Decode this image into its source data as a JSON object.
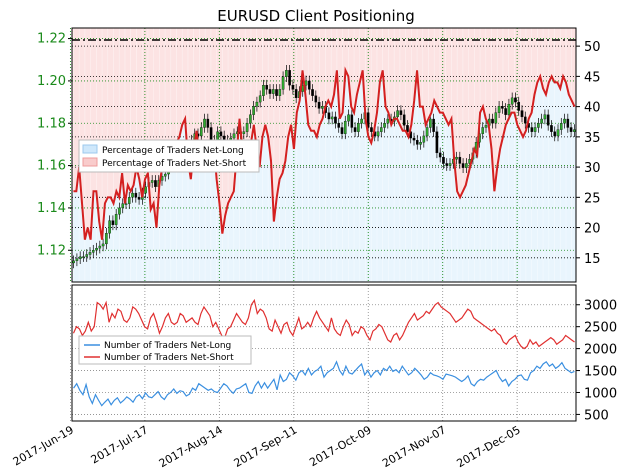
{
  "chart_data": [
    {
      "type": "candlestick+line",
      "title": "EURUSD Client Positioning",
      "left_axis": {
        "ticks": [
          "1.12",
          "1.14",
          "1.16",
          "1.18",
          "1.20",
          "1.22"
        ],
        "ylim": [
          1.105,
          1.225
        ],
        "color": "#1a8a1a"
      },
      "right_axis": {
        "ticks": [
          "15",
          "20",
          "25",
          "30",
          "35",
          "40",
          "45",
          "50"
        ],
        "ylim": [
          11,
          53
        ]
      },
      "x_ticks": [
        "2017-Jun-19",
        "2017-Jul-17",
        "2017-Aug-14",
        "2017-Sep-11",
        "2017-Oct-09",
        "2017-Nov-07",
        "2017-Dec-05"
      ],
      "grid": true,
      "legend": {
        "placement": "left",
        "entries": [
          {
            "label": "Percentage of Traders Net-Long",
            "color": "#cfe8fb"
          },
          {
            "label": "Percentage of Traders Net-Short",
            "color": "#f9cccc"
          }
        ]
      },
      "reference_line": {
        "value": 50,
        "style": "dash-dot",
        "color": "#000000"
      },
      "series": [
        {
          "name": "Percentage of Traders Net-Short",
          "color": "#d42020",
          "values": [
            26,
            26,
            30,
            24,
            18,
            20,
            18,
            26,
            26,
            21,
            18,
            24,
            25,
            25,
            24,
            26,
            25,
            29,
            24,
            27,
            26,
            27,
            30,
            28,
            25,
            28,
            29,
            23,
            24,
            20,
            27,
            30,
            31,
            32,
            33,
            31,
            34,
            35,
            37,
            38,
            31,
            28,
            33,
            36,
            31,
            32,
            33,
            34,
            33,
            34,
            28,
            24,
            19,
            22,
            24,
            25,
            26,
            32,
            38,
            33,
            33,
            32,
            34,
            37,
            33,
            30,
            35,
            37,
            35,
            31,
            21,
            25,
            28,
            29,
            31,
            35,
            37,
            33,
            39,
            41,
            46,
            42,
            37,
            36,
            36,
            35,
            37,
            38,
            40,
            41,
            40,
            42,
            46,
            38,
            39,
            46,
            45,
            40,
            39,
            42,
            44,
            46,
            38,
            35,
            34,
            36,
            39,
            44,
            46,
            40,
            39,
            37,
            38,
            38,
            37,
            36,
            36,
            35,
            37,
            41,
            46,
            40,
            40,
            37,
            38,
            39,
            41,
            40,
            39,
            39,
            38,
            37,
            38,
            31,
            26,
            25,
            26,
            27,
            29,
            31,
            33,
            32,
            39,
            40,
            38,
            37,
            33,
            26,
            30,
            33,
            35,
            37,
            38,
            39,
            39,
            37,
            36,
            35,
            36,
            38,
            39,
            42,
            44,
            45,
            43,
            42,
            44,
            45,
            44,
            44,
            43,
            45,
            44,
            42,
            41,
            40
          ]
        },
        {
          "name": "Candles",
          "color": "#000000",
          "values": [
            1.115,
            1.116,
            1.117,
            1.117,
            1.118,
            1.119,
            1.12,
            1.121,
            1.122,
            1.123,
            1.128,
            1.134,
            1.132,
            1.137,
            1.14,
            1.142,
            1.142,
            1.145,
            1.147,
            1.145,
            1.144,
            1.147,
            1.15,
            1.152,
            1.153,
            1.15,
            1.153,
            1.155,
            1.156,
            1.16,
            1.164,
            1.166,
            1.168,
            1.167,
            1.164,
            1.169,
            1.172,
            1.175,
            1.174,
            1.178,
            1.182,
            1.178,
            1.172,
            1.17,
            1.176,
            1.174,
            1.171,
            1.172,
            1.173,
            1.175,
            1.176,
            1.175,
            1.176,
            1.18,
            1.184,
            1.188,
            1.19,
            1.193,
            1.198,
            1.196,
            1.194,
            1.196,
            1.193,
            1.196,
            1.202,
            1.205,
            1.198,
            1.196,
            1.192,
            1.195,
            1.198,
            1.2,
            1.196,
            1.193,
            1.19,
            1.187,
            1.188,
            1.185,
            1.182,
            1.183,
            1.18,
            1.178,
            1.175,
            1.181,
            1.184,
            1.178,
            1.176,
            1.18,
            1.182,
            1.185,
            1.178,
            1.176,
            1.174,
            1.176,
            1.178,
            1.18,
            1.182,
            1.181,
            1.183,
            1.186,
            1.184,
            1.179,
            1.176,
            1.173,
            1.172,
            1.17,
            1.171,
            1.174,
            1.178,
            1.182,
            1.176,
            1.166,
            1.164,
            1.161,
            1.16,
            1.161,
            1.163,
            1.164,
            1.161,
            1.159,
            1.161,
            1.163,
            1.166,
            1.171,
            1.175,
            1.178,
            1.179,
            1.182,
            1.18,
            1.185,
            1.188,
            1.187,
            1.184,
            1.189,
            1.192,
            1.19,
            1.186,
            1.183,
            1.18,
            1.178,
            1.176,
            1.178,
            1.18,
            1.182,
            1.184,
            1.179,
            1.176,
            1.174,
            1.177,
            1.18,
            1.182,
            1.178,
            1.176,
            1.177
          ]
        }
      ]
    },
    {
      "type": "line",
      "left_axis": null,
      "right_axis": {
        "ticks": [
          "500",
          "1000",
          "1500",
          "2000",
          "2500",
          "3000"
        ],
        "ylim": [
          350,
          3450
        ]
      },
      "grid": true,
      "legend": {
        "placement": "left",
        "entries": [
          {
            "label": "Number of Traders Net-Long",
            "color": "#3a8fe0"
          },
          {
            "label": "Number of Traders Net-Short",
            "color": "#e03030"
          }
        ]
      },
      "series": [
        {
          "name": "Number of Traders Net-Long",
          "color": "#3a8fe0",
          "values": [
            1100,
            1200,
            1050,
            950,
            1180,
            900,
            750,
            950,
            820,
            700,
            780,
            850,
            720,
            820,
            880,
            760,
            820,
            900,
            850,
            780,
            900,
            950,
            860,
            990,
            900,
            880,
            950,
            1020,
            900,
            840,
            950,
            1000,
            1080,
            980,
            1040,
            1020,
            920,
            960,
            1100,
            1050,
            1200,
            1150,
            1100,
            1050,
            1080,
            1020,
            1000,
            1100,
            1200,
            1150,
            1050,
            980,
            1080,
            1100,
            1150,
            1200,
            1000,
            980,
            1150,
            1250,
            1100,
            1220,
            1100,
            1200,
            1300,
            1060,
            1400,
            1250,
            1300,
            1450,
            1380,
            1280,
            1450,
            1500,
            1400,
            1550,
            1400,
            1480,
            1520,
            1600,
            1350,
            1450,
            1500,
            1550,
            1700,
            1500,
            1400,
            1600,
            1450,
            1420,
            1500,
            1580,
            1650,
            1400,
            1500,
            1350,
            1450,
            1500,
            1400,
            1550,
            1500,
            1600,
            1480,
            1520,
            1450,
            1600,
            1500,
            1400,
            1450,
            1550,
            1480,
            1400,
            1300,
            1350,
            1450,
            1400,
            1380,
            1350,
            1300,
            1420,
            1400,
            1380,
            1350,
            1300,
            1250,
            1300,
            1380,
            1200,
            1150,
            1250,
            1300,
            1280,
            1350,
            1400,
            1450,
            1500,
            1350,
            1250,
            1300,
            1150,
            1250,
            1300,
            1380,
            1400,
            1300,
            1280,
            1450,
            1500,
            1600,
            1550,
            1650,
            1700,
            1600,
            1650,
            1550,
            1600,
            1680,
            1550,
            1500,
            1450,
            1480
          ]
        },
        {
          "name": "Number of Traders Net-Short",
          "color": "#e03030",
          "values": [
            2350,
            2500,
            2450,
            2300,
            2400,
            2600,
            2400,
            2500,
            3050,
            3000,
            2900,
            3050,
            2600,
            2800,
            2700,
            2900,
            2850,
            2650,
            2600,
            2700,
            2950,
            2900,
            2800,
            2650,
            2500,
            2450,
            2700,
            2800,
            2600,
            2350,
            2500,
            2700,
            2800,
            2600,
            2550,
            2600,
            2800,
            2750,
            2600,
            2650,
            2700,
            2600,
            2550,
            2800,
            2950,
            2850,
            2750,
            2500,
            2600,
            2450,
            2300,
            2250,
            2450,
            2500,
            2650,
            2800,
            2700,
            2600,
            2550,
            2700,
            3000,
            3100,
            2800,
            2900,
            2850,
            2700,
            2450,
            2400,
            2650,
            2500,
            2350,
            2550,
            2600,
            2400,
            2300,
            2500,
            2700,
            2450,
            2500,
            2600,
            2500,
            2700,
            2850,
            2700,
            2600,
            2500,
            2400,
            2700,
            2450,
            2350,
            2300,
            2500,
            2650,
            2550,
            2300,
            2400,
            2350,
            2500,
            2450,
            2300,
            2200,
            2400,
            2450,
            2550,
            2500,
            2350,
            2200,
            2150,
            2300,
            2350,
            2200,
            2300,
            2450,
            2600,
            2700,
            2800,
            2650,
            2700,
            2750,
            2850,
            2800,
            2900,
            3000,
            3050,
            2950,
            2900,
            2850,
            2800,
            2700,
            2600,
            2650,
            2700,
            2800,
            2900,
            2850,
            2700,
            2650,
            2600,
            2550,
            2500,
            2450,
            2400,
            2450,
            2350,
            2300,
            2150,
            2100,
            2200,
            2250,
            2300,
            2150,
            2050,
            2000,
            2050,
            2200,
            2100,
            2150,
            2050,
            2100,
            2150,
            2200,
            2250,
            2200,
            2100,
            2150,
            2200,
            2300,
            2250,
            2200,
            2150
          ]
        }
      ]
    }
  ]
}
